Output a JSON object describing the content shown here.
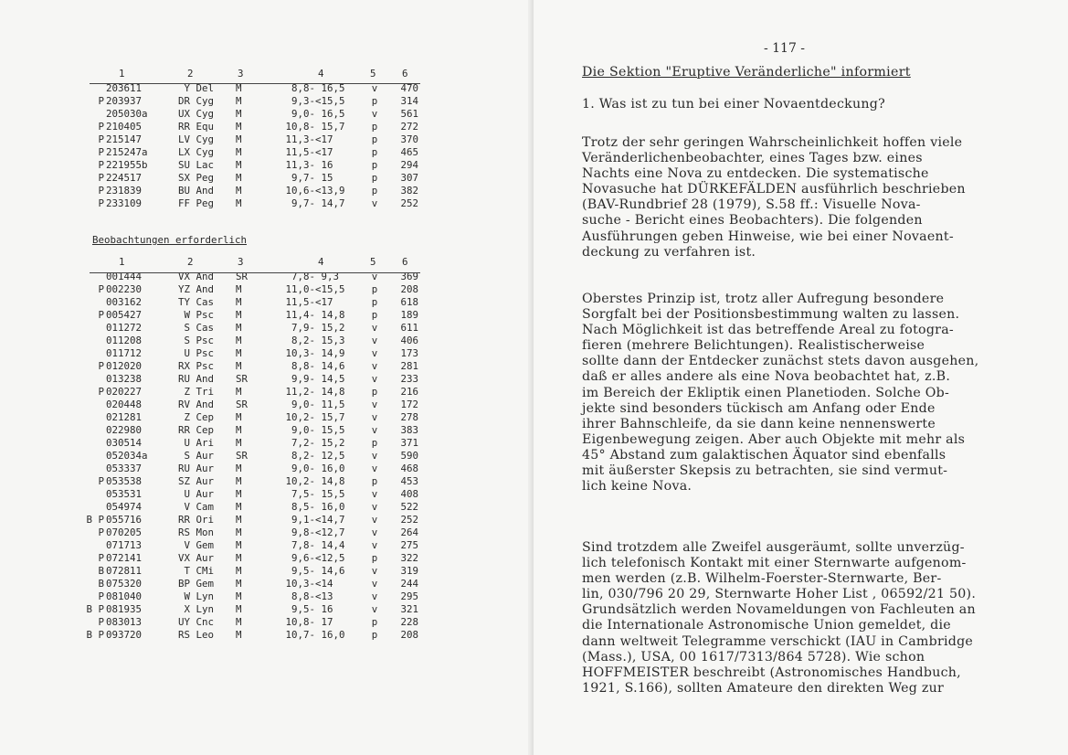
{
  "left_page": {
    "table1": {
      "headers": [
        "1",
        "2",
        "3",
        "4",
        "5",
        "6"
      ],
      "rows": [
        {
          "pre": "",
          "num": "203611",
          "star": "Y Del",
          "type": "M",
          "range": "8,8- 16,5",
          "src": "v",
          "per": "470"
        },
        {
          "pre": "P",
          "num": "203937",
          "star": "DR Cyg",
          "type": "M",
          "range": "9,3-<15,5",
          "src": "p",
          "per": "314"
        },
        {
          "pre": "",
          "num": "205030a",
          "star": "UX Cyg",
          "type": "M",
          "range": "9,0- 16,5",
          "src": "v",
          "per": "561"
        },
        {
          "pre": "P",
          "num": "210405",
          "star": "RR Equ",
          "type": "M",
          "range": "10,8- 15,7",
          "src": "p",
          "per": "272"
        },
        {
          "pre": "P",
          "num": "215147",
          "star": "LV Cyg",
          "type": "M",
          "range": "11,3-<17",
          "src": "p",
          "per": "370"
        },
        {
          "pre": "P",
          "num": "215247a",
          "star": "LX Cyg",
          "type": "M",
          "range": "11,5-<17",
          "src": "p",
          "per": "465"
        },
        {
          "pre": "P",
          "num": "221955b",
          "star": "SU Lac",
          "type": "M",
          "range": "11,3- 16",
          "src": "p",
          "per": "294"
        },
        {
          "pre": "P",
          "num": "224517",
          "star": "SX Peg",
          "type": "M",
          "range": "9,7- 15",
          "src": "p",
          "per": "307"
        },
        {
          "pre": "P",
          "num": "231839",
          "star": "BU And",
          "type": "M",
          "range": "10,6-<13,9",
          "src": "p",
          "per": "382"
        },
        {
          "pre": "P",
          "num": "233109",
          "star": "FF Peg",
          "type": "M",
          "range": "9,7- 14,7",
          "src": "v",
          "per": "252"
        }
      ]
    },
    "section_heading": "Beobachtungen erforderlich",
    "table2": {
      "headers": [
        "1",
        "2",
        "3",
        "4",
        "5",
        "6"
      ],
      "rows": [
        {
          "pre": "",
          "num": "001444",
          "star": "VX And",
          "type": "SR",
          "range": "7,8- 9,3",
          "src": "v",
          "per": "369"
        },
        {
          "pre": "P",
          "num": "002230",
          "star": "YZ And",
          "type": "M",
          "range": "11,0-<15,5",
          "src": "p",
          "per": "208"
        },
        {
          "pre": "",
          "num": "003162",
          "star": "TY Cas",
          "type": "M",
          "range": "11,5-<17",
          "src": "p",
          "per": "618"
        },
        {
          "pre": "P",
          "num": "005427",
          "star": "W Psc",
          "type": "M",
          "range": "11,4- 14,8",
          "src": "p",
          "per": "189"
        },
        {
          "pre": "",
          "num": "011272",
          "star": "S Cas",
          "type": "M",
          "range": "7,9- 15,2",
          "src": "v",
          "per": "611"
        },
        {
          "pre": "",
          "num": "011208",
          "star": "S Psc",
          "type": "M",
          "range": "8,2- 15,3",
          "src": "v",
          "per": "406"
        },
        {
          "pre": "",
          "num": "011712",
          "star": "U Psc",
          "type": "M",
          "range": "10,3- 14,9",
          "src": "v",
          "per": "173"
        },
        {
          "pre": "P",
          "num": "012020",
          "star": "RX Psc",
          "type": "M",
          "range": "8,8- 14,6",
          "src": "v",
          "per": "281"
        },
        {
          "pre": "",
          "num": "013238",
          "star": "RU And",
          "type": "SR",
          "range": "9,9- 14,5",
          "src": "v",
          "per": "233"
        },
        {
          "pre": "P",
          "num": "020227",
          "star": "Z Tri",
          "type": "M",
          "range": "11,2- 14,8",
          "src": "p",
          "per": "216"
        },
        {
          "pre": "",
          "num": "020448",
          "star": "RV And",
          "type": "SR",
          "range": "9,0- 11,5",
          "src": "v",
          "per": "172"
        },
        {
          "pre": "",
          "num": "021281",
          "star": "Z Cep",
          "type": "M",
          "range": "10,2- 15,7",
          "src": "v",
          "per": "278"
        },
        {
          "pre": "",
          "num": "022980",
          "star": "RR Cep",
          "type": "M",
          "range": "9,0- 15,5",
          "src": "v",
          "per": "383"
        },
        {
          "pre": "",
          "num": "030514",
          "star": "U Ari",
          "type": "M",
          "range": "7,2- 15,2",
          "src": "p",
          "per": "371"
        },
        {
          "pre": "",
          "num": "052034a",
          "star": "S Aur",
          "type": "SR",
          "range": "8,2- 12,5",
          "src": "v",
          "per": "590"
        },
        {
          "pre": "",
          "num": "053337",
          "star": "RU Aur",
          "type": "M",
          "range": "9,0- 16,0",
          "src": "v",
          "per": "468"
        },
        {
          "pre": "P",
          "num": "053538",
          "star": "SZ Aur",
          "type": "M",
          "range": "10,2- 14,8",
          "src": "p",
          "per": "453"
        },
        {
          "pre": "",
          "num": "053531",
          "star": "U Aur",
          "type": "M",
          "range": "7,5- 15,5",
          "src": "v",
          "per": "408"
        },
        {
          "pre": "",
          "num": "054974",
          "star": "V Cam",
          "type": "M",
          "range": "8,5- 16,0",
          "src": "v",
          "per": "522"
        },
        {
          "pre": "B P",
          "num": "055716",
          "star": "RR Ori",
          "type": "M",
          "range": "9,1-<14,7",
          "src": "v",
          "per": "252"
        },
        {
          "pre": "P",
          "num": "070205",
          "star": "RS Mon",
          "type": "M",
          "range": "9,8-<12,7",
          "src": "v",
          "per": "264"
        },
        {
          "pre": "",
          "num": "071713",
          "star": "V Gem",
          "type": "M",
          "range": "7,8- 14,4",
          "src": "v",
          "per": "275"
        },
        {
          "pre": "P",
          "num": "072141",
          "star": "VX Aur",
          "type": "M",
          "range": "9,6-<12,5",
          "src": "p",
          "per": "322"
        },
        {
          "pre": "B",
          "num": "072811",
          "star": "T CMi",
          "type": "M",
          "range": "9,5- 14,6",
          "src": "v",
          "per": "319"
        },
        {
          "pre": "B",
          "num": "075320",
          "star": "BP Gem",
          "type": "M",
          "range": "10,3-<14",
          "src": "v",
          "per": "244"
        },
        {
          "pre": "P",
          "num": "081040",
          "star": "W Lyn",
          "type": "M",
          "range": "8,8-<13",
          "src": "v",
          "per": "295"
        },
        {
          "pre": "B P",
          "num": "081935",
          "star": "X Lyn",
          "type": "M",
          "range": "9,5- 16",
          "src": "v",
          "per": "321"
        },
        {
          "pre": "P",
          "num": "083013",
          "star": "UY Cnc",
          "type": "M",
          "range": "10,8- 17",
          "src": "p",
          "per": "228"
        },
        {
          "pre": "B P",
          "num": "093720",
          "star": "RS Leo",
          "type": "M",
          "range": "10,7- 16,0",
          "src": "p",
          "per": "208"
        }
      ]
    }
  },
  "right_page": {
    "page_number": "- 117 -",
    "title": "Die Sektion \"Eruptive Veränderliche\" informiert",
    "paragraphs": [
      [
        "1. Was ist zu tun bei einer Novaentdeckung?"
      ],
      [
        "Trotz der sehr geringen Wahrscheinlichkeit hoffen viele",
        "Veränderlichenbeobachter, eines Tages bzw. eines",
        "Nachts eine Nova zu entdecken. Die systematische",
        "Novasuche hat DÜRKEFÄLDEN ausführlich beschrieben",
        "(BAV-Rundbrief 28 (1979), S.58 ff.: Visuelle Nova-",
        "suche - Bericht eines Beobachters). Die folgenden",
        "Ausführungen geben Hinweise, wie bei einer Novaent-",
        "deckung zu verfahren ist."
      ],
      [
        "Oberstes Prinzip ist, trotz aller Aufregung besondere",
        "Sorgfalt bei der Positionsbestimmung walten zu lassen.",
        "Nach Möglichkeit ist das betreffende Areal zu fotogra-",
        "fieren (mehrere Belichtungen). Realistischerweise",
        "sollte dann der Entdecker zunächst stets davon ausgehen,",
        "daß er alles andere als eine Nova beobachtet hat, z.B.",
        "im Bereich der Ekliptik einen Planetioden. Solche Ob-",
        "jekte sind besonders tückisch am Anfang oder Ende",
        "ihrer Bahnschleife, da sie dann keine nennenswerte",
        "Eigenbewegung zeigen. Aber auch Objekte mit mehr als",
        "45° Abstand zum galaktischen Äquator sind ebenfalls",
        "mit äußerster Skepsis zu betrachten, sie sind vermut-",
        "lich keine Nova."
      ],
      [
        "Sind trotzdem alle Zweifel ausgeräumt, sollte unverzüg-",
        "lich telefonisch Kontakt mit einer Sternwarte aufgenom-",
        "men werden (z.B. Wilhelm-Foerster-Sternwarte, Ber-",
        "lin, 030/796 20 29, Sternwarte Hoher List , 06592/21 50).",
        "Grundsätzlich werden Novameldungen von Fachleuten an",
        "die Internationale Astronomische Union gemeldet, die",
        "dann weltweit Telegramme verschickt (IAU in Cambridge",
        "(Mass.), USA, 00 1617/7313/864 5728). Wie schon",
        "HOFFMEISTER beschreibt (Astronomisches Handbuch,",
        "1921, S.166), sollten Amateure den direkten Weg zur"
      ]
    ]
  }
}
